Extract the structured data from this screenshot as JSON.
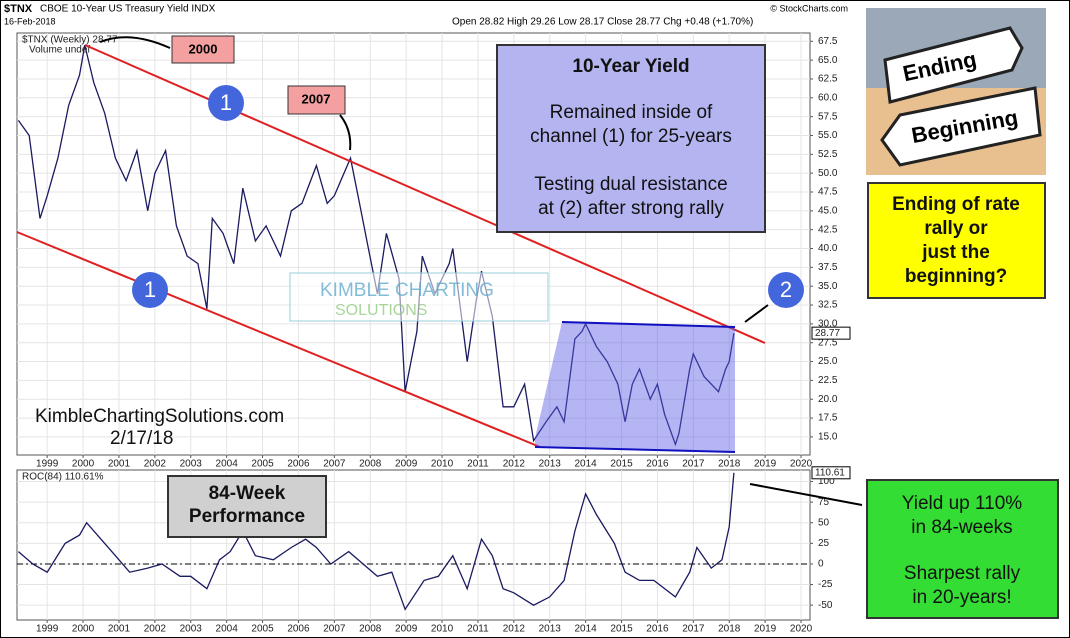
{
  "header": {
    "symbol": "$TNX",
    "name": "CBOE 10-Year US Treasury Yield INDX",
    "date": "16-Feb-2018",
    "ohlc": "Open 28.82 High 29.26 Low 28.17 Close 28.77 Chg +0.48 (+1.70%)",
    "source": "© StockCharts.com"
  },
  "annotations": {
    "label_2000": "2000",
    "label_2007": "2007",
    "channel_a": "1",
    "channel_b": "1",
    "resistance": "2",
    "box_title": "10-Year Yield",
    "box_line1": "Remained inside of",
    "box_line2": "channel (1) for 25-years",
    "box_line3": "Testing dual resistance",
    "box_line4": "at (2) after strong rally",
    "watermark_1": "KIMBLE CHARTING",
    "watermark_2": "SOLUTIONS",
    "site": "KimbleChartingSolutions.com",
    "stamp": "2/17/18",
    "perf_1": "84-Week",
    "perf_2": "Performance",
    "green_1": "Yield up 110%",
    "green_2": "in 84-weeks",
    "green_3": "Sharpest rally",
    "green_4": "in 20-years!",
    "sign_1": "Ending",
    "sign_2": "Beginning",
    "yellow_1": "Ending of rate",
    "yellow_2": "rally or",
    "yellow_3": "just the",
    "yellow_4": "beginning?"
  },
  "chart_data": [
    {
      "type": "line",
      "legend": "$TNX (Weekly) 28.77",
      "legend_2": "Volume undef",
      "last_label": "28.77",
      "xlim": [
        1998.16,
        2020.25
      ],
      "ylim": [
        12.6,
        68.6
      ],
      "grid": true,
      "xticks": [
        1999,
        2000,
        2001,
        2002,
        2003,
        2004,
        2005,
        2006,
        2007,
        2008,
        2009,
        2010,
        2011,
        2012,
        2013,
        2014,
        2015,
        2016,
        2017,
        2018,
        2019,
        2020
      ],
      "yticks": [
        {
          "value": 15,
          "label": "15.0"
        },
        {
          "value": 17.5,
          "label": "17.5"
        },
        {
          "value": 20,
          "label": "20.0"
        },
        {
          "value": 22.5,
          "label": "22.5"
        },
        {
          "value": 25,
          "label": "25.0"
        },
        {
          "value": 27.5,
          "label": "27.5"
        },
        {
          "value": 30,
          "label": "30.0"
        },
        {
          "value": 32.5,
          "label": "32.5"
        },
        {
          "value": 35,
          "label": "35.0"
        },
        {
          "value": 37.5,
          "label": "37.5"
        },
        {
          "value": 40,
          "label": "40.0"
        },
        {
          "value": 42.5,
          "label": "42.5"
        },
        {
          "value": 45,
          "label": "45.0"
        },
        {
          "value": 47.5,
          "label": "47.5"
        },
        {
          "value": 50,
          "label": "50.0"
        },
        {
          "value": 52.5,
          "label": "52.5"
        },
        {
          "value": 55,
          "label": "55.0"
        },
        {
          "value": 57.5,
          "label": "57.5"
        },
        {
          "value": 60,
          "label": "60.0"
        },
        {
          "value": 62.5,
          "label": "62.5"
        },
        {
          "value": 65,
          "label": "65.0"
        },
        {
          "value": 67.5,
          "label": "67.5"
        }
      ],
      "series": [
        {
          "color": "#1a1a60",
          "x": [
            1998.2,
            1998.5,
            1998.8,
            1999.0,
            1999.3,
            1999.6,
            1999.9,
            2000.05,
            2000.3,
            2000.6,
            2000.9,
            2001.2,
            2001.5,
            2001.8,
            2002.0,
            2002.3,
            2002.6,
            2002.9,
            2003.2,
            2003.45,
            2003.6,
            2003.9,
            2004.2,
            2004.45,
            2004.8,
            2005.1,
            2005.5,
            2005.8,
            2006.1,
            2006.5,
            2006.8,
            2007.0,
            2007.45,
            2007.7,
            2007.95,
            2008.2,
            2008.45,
            2008.8,
            2008.97,
            2009.3,
            2009.45,
            2009.8,
            2010.2,
            2010.3,
            2010.7,
            2010.95,
            2011.1,
            2011.4,
            2011.7,
            2012.0,
            2012.3,
            2012.55,
            2012.9,
            2013.2,
            2013.4,
            2013.7,
            2013.9,
            2014.0,
            2014.3,
            2014.6,
            2014.9,
            2015.1,
            2015.3,
            2015.5,
            2015.8,
            2016.0,
            2016.2,
            2016.5,
            2016.6,
            2016.9,
            2017.0,
            2017.3,
            2017.7,
            2017.9,
            2018.0,
            2018.13
          ],
          "values": [
            57,
            55,
            44,
            47,
            52,
            59,
            63,
            67,
            62,
            58,
            52,
            49,
            53,
            45,
            50,
            53,
            43,
            39,
            38,
            32,
            44,
            42,
            38,
            48,
            41,
            43,
            39,
            45,
            46,
            51,
            46,
            47,
            52,
            46,
            40,
            34,
            42,
            36,
            21,
            29,
            39,
            34,
            38,
            40,
            25,
            33,
            37,
            31,
            19,
            19,
            22,
            14.5,
            17,
            19,
            17,
            28,
            29,
            30,
            27,
            25,
            22,
            17,
            22,
            24,
            20,
            22,
            18,
            14,
            15.5,
            24,
            26,
            23,
            21,
            24,
            25,
            28.77
          ]
        }
      ]
    },
    {
      "type": "line",
      "legend": "ROC(84) 110.61%",
      "last_label": "110.61",
      "xlim": [
        1998.16,
        2020.25
      ],
      "ylim": [
        -68,
        114
      ],
      "zero_line": true,
      "grid": true,
      "xticks": [
        1999,
        2000,
        2001,
        2002,
        2003,
        2004,
        2005,
        2006,
        2007,
        2008,
        2009,
        2010,
        2011,
        2012,
        2013,
        2014,
        2015,
        2016,
        2017,
        2018,
        2019,
        2020
      ],
      "yticks": [
        -50,
        -25,
        0,
        25,
        50,
        75,
        100
      ],
      "series": [
        {
          "color": "#1a1a60",
          "x": [
            1998.2,
            1998.6,
            1999.0,
            1999.5,
            1999.9,
            2000.1,
            2000.5,
            2000.9,
            2001.3,
            2001.8,
            2002.2,
            2002.7,
            2003.0,
            2003.45,
            2003.8,
            2004.1,
            2004.45,
            2004.8,
            2005.3,
            2005.8,
            2006.2,
            2006.5,
            2006.9,
            2007.4,
            2007.8,
            2008.2,
            2008.6,
            2008.97,
            2009.5,
            2009.9,
            2010.3,
            2010.7,
            2011.1,
            2011.4,
            2011.7,
            2012.0,
            2012.55,
            2013.0,
            2013.4,
            2013.7,
            2014.0,
            2014.3,
            2014.8,
            2015.1,
            2015.5,
            2015.9,
            2016.5,
            2016.9,
            2017.1,
            2017.5,
            2017.8,
            2018.0,
            2018.13
          ],
          "values": [
            15,
            0,
            -10,
            25,
            35,
            50,
            30,
            10,
            -10,
            -5,
            0,
            -15,
            -15,
            -30,
            5,
            15,
            40,
            10,
            5,
            20,
            30,
            20,
            0,
            15,
            0,
            -15,
            -10,
            -55,
            -20,
            -15,
            10,
            -30,
            30,
            10,
            -30,
            -35,
            -50,
            -40,
            -20,
            40,
            85,
            60,
            25,
            -10,
            -20,
            -20,
            -40,
            -10,
            20,
            -5,
            5,
            45,
            110.61
          ]
        }
      ]
    }
  ]
}
